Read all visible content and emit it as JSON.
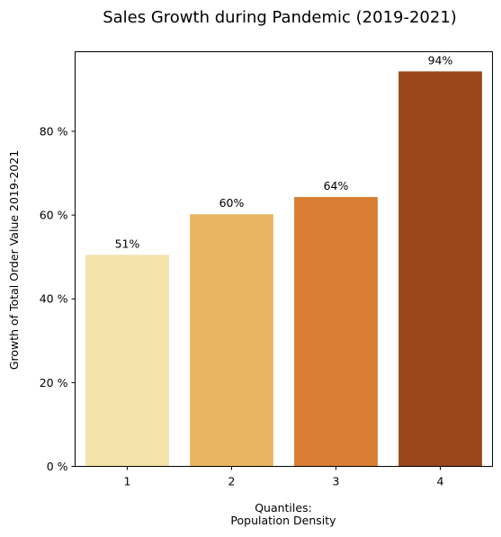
{
  "chart_data": {
    "type": "bar",
    "title": "Sales Growth during Pandemic (2019-2021)",
    "xlabel_line1": "Quantiles:",
    "xlabel_line2": "Population Density",
    "ylabel": "Growth of Total Order Value 2019-2021",
    "categories": [
      "1",
      "2",
      "3",
      "4"
    ],
    "values": [
      50.5,
      60.2,
      64.3,
      94.3
    ],
    "data_labels": [
      "51%",
      "60%",
      "64%",
      "94%"
    ],
    "colors": [
      "#f3e2aa",
      "#e8b661",
      "#d87d33",
      "#9c461b"
    ],
    "ylim": [
      0,
      99
    ],
    "yticks": [
      0,
      20,
      40,
      60,
      80
    ],
    "ytick_labels": [
      "0 %",
      "20 %",
      "40 %",
      "60 %",
      "80 %"
    ],
    "grid": false,
    "legend": "none"
  }
}
